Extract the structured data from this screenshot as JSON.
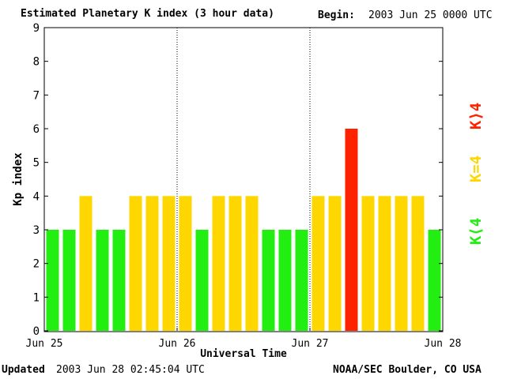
{
  "header": {
    "title": "Estimated Planetary K index (3 hour data)",
    "begin_label": "Begin:",
    "begin_value": "2003 Jun 25 0000 UTC"
  },
  "footer": {
    "updated_label": "Updated",
    "updated_value": "2003 Jun 28 02:45:04 UTC",
    "credit": "NOAA/SEC Boulder, CO USA"
  },
  "legend": {
    "items": [
      {
        "label": "K⟨4",
        "color": "#22ee11"
      },
      {
        "label": "K=4",
        "color": "#ffd700"
      },
      {
        "label": "K⟩4",
        "color": "#ff2200"
      }
    ]
  },
  "chart_data": {
    "type": "bar",
    "xlabel": "Universal Time",
    "ylabel": "Kp index",
    "ylim": [
      0,
      9
    ],
    "yticks": [
      0,
      1,
      2,
      3,
      4,
      5,
      6,
      7,
      8,
      9
    ],
    "xtick_labels": [
      "Jun 25",
      "Jun 26",
      "Jun 27",
      "Jun 28"
    ],
    "grid": "vertical dotted lines at day boundaries",
    "values": [
      3,
      3,
      4,
      3,
      3,
      4,
      4,
      4,
      4,
      3,
      4,
      4,
      4,
      3,
      3,
      3,
      4,
      4,
      6,
      4,
      4,
      4,
      4,
      3
    ],
    "colors": {
      "below_4": "#22ee11",
      "equal_4": "#ffd700",
      "above_4": "#ff2200"
    }
  }
}
